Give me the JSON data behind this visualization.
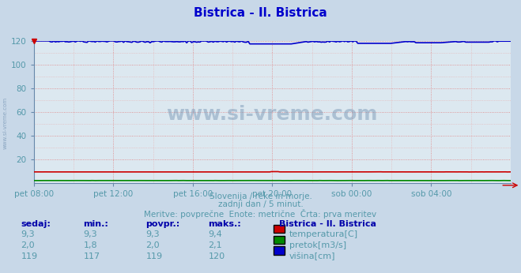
{
  "title": "Bistrica - Il. Bistrica",
  "title_color": "#0000cc",
  "bg_color": "#c8d8e8",
  "plot_bg_color": "#dce8f0",
  "grid_color_major": "#e08080",
  "grid_color_minor": "#e8b0b0",
  "xlim": [
    0,
    24
  ],
  "ylim": [
    0,
    120
  ],
  "yticks": [
    20,
    40,
    60,
    80,
    100,
    120
  ],
  "xtick_labels": [
    "pet 08:00",
    "pet 12:00",
    "pet 16:00",
    "pet 20:00",
    "sob 00:00",
    "sob 04:00"
  ],
  "xtick_positions": [
    0,
    4,
    8,
    12,
    16,
    20
  ],
  "temperatura_color": "#cc0000",
  "pretok_color": "#008800",
  "visina_color": "#0000cc",
  "temperatura_value": 9.3,
  "pretok_value": 2.0,
  "visina_value": 119.0,
  "subtitle1": "Slovenija / reke in morje.",
  "subtitle2": "zadnji dan / 5 minut.",
  "subtitle3": "Meritve: povprečne  Enote: metrične  Črta: prva meritev",
  "text_color": "#5599aa",
  "table_header_color": "#0000aa",
  "tick_color": "#5599aa",
  "watermark": "www.si-vreme.com",
  "n_points": 288,
  "col_headers": [
    "sedaj:",
    "min.:",
    "povpr.:",
    "maks.:"
  ],
  "col_data_sedaj": [
    "9,3",
    "2,0",
    "119"
  ],
  "col_data_min": [
    "9,3",
    "1,8",
    "117"
  ],
  "col_data_povpr": [
    "9,3",
    "2,0",
    "119"
  ],
  "col_data_maks": [
    "9,4",
    "2,1",
    "120"
  ],
  "row_labels": [
    "temperatura[C]",
    "pretok[m3/s]",
    "višina[cm]"
  ],
  "station_label": "Bistrica - Il. Bistrica"
}
